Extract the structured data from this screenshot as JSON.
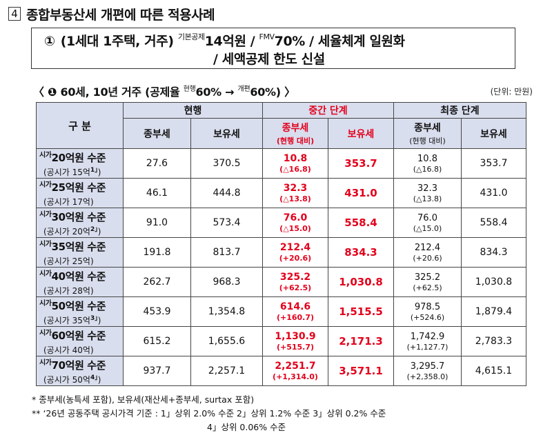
{
  "heading": {
    "number": "4",
    "text": "종합부동산세 개편에 따른 적용사례"
  },
  "case": {
    "circle": "①",
    "prefix": "(1세대 1주택, 거주)",
    "deduction_label": "기본공제",
    "deduction_value": "14억원 /",
    "fmv_label": "FMV",
    "fmv_value": "70% / 세율체계 일원화",
    "line2": "/ 세액공제 한도 신설"
  },
  "subhead": {
    "open": "〈",
    "bullet": "❶",
    "text_a": "60세, 10년 거주 (공제율",
    "sup_current": "현행",
    "pct_current": "60% →",
    "sup_reform": "개편",
    "pct_reform": "60%)",
    "close": "〉"
  },
  "unit": "(단위: 만원)",
  "table": {
    "header_category": "구 분",
    "groups": {
      "current": "현행",
      "middle": "중간 단계",
      "final": "최종 단계"
    },
    "cols": {
      "comprehensive": "종부세",
      "holding": "보유세",
      "mid_comprehensive": "종부세",
      "mid_comprehensive_sub": "(현행 대비)",
      "mid_holding": "보유세",
      "final_comprehensive": "종부세",
      "final_comprehensive_sub": "(현행 대비)",
      "final_holding": "보유세"
    },
    "rows": [
      {
        "sise": "시가",
        "price": "20억원 수준",
        "price_sup": "",
        "assessed": "(공시가 15억",
        "assessed_sup": "1」",
        "assessed_close": ")",
        "cur_comp": "27.6",
        "cur_hold": "370.5",
        "mid_comp": "10.8",
        "mid_delta": "(△16.8)",
        "mid_hold": "353.7",
        "fin_comp": "10.8",
        "fin_delta": "(△16.8)",
        "fin_hold": "353.7"
      },
      {
        "sise": "시가",
        "price": "25억원 수준",
        "price_sup": "",
        "assessed": "(공시가 17억",
        "assessed_sup": "",
        "assessed_close": ")",
        "cur_comp": "46.1",
        "cur_hold": "444.8",
        "mid_comp": "32.3",
        "mid_delta": "(△13.8)",
        "mid_hold": "431.0",
        "fin_comp": "32.3",
        "fin_delta": "(△13.8)",
        "fin_hold": "431.0"
      },
      {
        "sise": "시가",
        "price": "30억원 수준",
        "price_sup": "",
        "assessed": "(공시가 20억",
        "assessed_sup": "2」",
        "assessed_close": ")",
        "cur_comp": "91.0",
        "cur_hold": "573.4",
        "mid_comp": "76.0",
        "mid_delta": "(△15.0)",
        "mid_hold": "558.4",
        "fin_comp": "76.0",
        "fin_delta": "(△15.0)",
        "fin_hold": "558.4"
      },
      {
        "sise": "시가",
        "price": "35억원 수준",
        "price_sup": "",
        "assessed": "(공시가 25억",
        "assessed_sup": "",
        "assessed_close": ")",
        "cur_comp": "191.8",
        "cur_hold": "813.7",
        "mid_comp": "212.4",
        "mid_delta": "(+20.6)",
        "mid_hold": "834.3",
        "fin_comp": "212.4",
        "fin_delta": "(+20.6)",
        "fin_hold": "834.3"
      },
      {
        "sise": "시가",
        "price": "40억원 수준",
        "price_sup": "",
        "assessed": "(공시가 28억",
        "assessed_sup": "",
        "assessed_close": ")",
        "cur_comp": "262.7",
        "cur_hold": "968.3",
        "mid_comp": "325.2",
        "mid_delta": "(+62.5)",
        "mid_hold": "1,030.8",
        "fin_comp": "325.2",
        "fin_delta": "(+62.5)",
        "fin_hold": "1,030.8"
      },
      {
        "sise": "시가",
        "price": "50억원 수준",
        "price_sup": "",
        "assessed": "(공시가 35억",
        "assessed_sup": "3」",
        "assessed_close": ")",
        "cur_comp": "453.9",
        "cur_hold": "1,354.8",
        "mid_comp": "614.6",
        "mid_delta": "(+160.7)",
        "mid_hold": "1,515.5",
        "fin_comp": "978.5",
        "fin_delta": "(+524.6)",
        "fin_hold": "1,879.4"
      },
      {
        "sise": "시가",
        "price": "60억원 수준",
        "price_sup": "",
        "assessed": "(공시가 40억",
        "assessed_sup": "",
        "assessed_close": ")",
        "cur_comp": "615.2",
        "cur_hold": "1,655.6",
        "mid_comp": "1,130.9",
        "mid_delta": "(+515.7)",
        "mid_hold": "2,171.3",
        "fin_comp": "1,742.9",
        "fin_delta": "(+1,127.7)",
        "fin_hold": "2,783.3"
      },
      {
        "sise": "시가",
        "price": "70억원 수준",
        "price_sup": "",
        "assessed": "(공시가 50억",
        "assessed_sup": "4」",
        "assessed_close": ")",
        "cur_comp": "937.7",
        "cur_hold": "2,257.1",
        "mid_comp": "2,251.7",
        "mid_delta": "(+1,314.0)",
        "mid_hold": "3,571.1",
        "fin_comp": "3,295.7",
        "fin_delta": "(+2,358.0)",
        "fin_hold": "4,615.1"
      }
    ]
  },
  "notes": {
    "n1": "*  종부세(농특세 포함), 보유세(재산세+종부세, surtax 포함)",
    "n2": "** ‘26년 공동주택 공시가격 기준 : 1」상위 2.0% 수준   2」상위 1.2% 수준  3」상위 0.2% 수준",
    "n3": "4」상위  0.06% 수준"
  },
  "colors": {
    "header_bg": "#d9deee",
    "accent_red": "#e3001b"
  }
}
